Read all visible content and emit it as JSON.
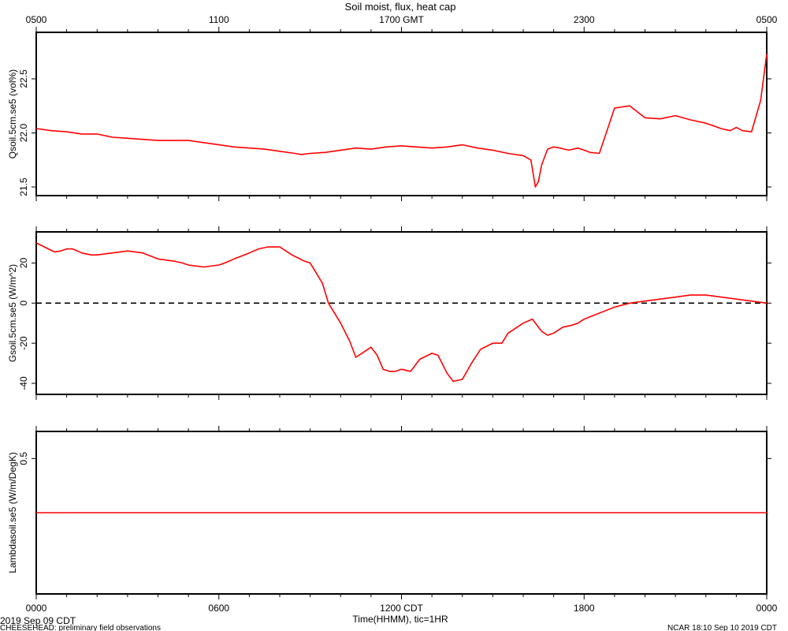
{
  "title": "Soil moist, flux, heat cap",
  "top_axis_labels": [
    "0500",
    "1100",
    "1700 GMT",
    "2300",
    "0500"
  ],
  "bottom_axis_labels": [
    "0000",
    "0600",
    "1200 CDT",
    "1800",
    "0000"
  ],
  "xlabel": "Time(HHMM), tic=1HR",
  "date_label": "2019 Sep 09 CDT",
  "footer_left": "CHEESEHEAD: preliminary field observations",
  "footer_right": "NCAR 18:10 Sep 10 2019 CDT",
  "colors": {
    "series": "#ff0000",
    "axes": "#000000"
  },
  "chart_data": [
    {
      "type": "line",
      "ylabel": "Qsoil.5cm.se5 (vol%)",
      "ylim": [
        21.42,
        22.93
      ],
      "yticks": [
        21.5,
        22.0,
        22.5
      ],
      "ytick_labels": [
        "21.5",
        "22.0",
        "22.5"
      ],
      "xlim": [
        0,
        24
      ],
      "series": [
        {
          "x": [
            0,
            0.5,
            1,
            1.5,
            2,
            2.5,
            3,
            3.5,
            4,
            4.5,
            5,
            5.5,
            6,
            6.5,
            7,
            7.5,
            8,
            8.5,
            8.7,
            9,
            9.5,
            10,
            10.5,
            11,
            11.5,
            12,
            12.5,
            13,
            13.5,
            14,
            14.5,
            15,
            15.5,
            16,
            16.25,
            16.4,
            16.5,
            16.6,
            16.8,
            17,
            17.2,
            17.5,
            17.8,
            18,
            18.2,
            18.5,
            19,
            19.5,
            20,
            20.5,
            21,
            21.5,
            22,
            22.2,
            22.5,
            22.8,
            23,
            23.2,
            23.5,
            23.8,
            24
          ],
          "values": [
            22.04,
            22.02,
            22.01,
            21.99,
            21.99,
            21.96,
            21.95,
            21.94,
            21.93,
            21.93,
            21.93,
            21.91,
            21.89,
            21.87,
            21.86,
            21.85,
            21.83,
            21.81,
            21.8,
            21.81,
            21.82,
            21.84,
            21.86,
            21.85,
            21.87,
            21.88,
            21.87,
            21.86,
            21.87,
            21.89,
            21.86,
            21.84,
            21.81,
            21.79,
            21.75,
            21.5,
            21.55,
            21.7,
            21.85,
            21.87,
            21.86,
            21.84,
            21.86,
            21.84,
            21.82,
            21.81,
            22.23,
            22.25,
            22.14,
            22.13,
            22.16,
            22.12,
            22.09,
            22.07,
            22.04,
            22.02,
            22.05,
            22.02,
            22.01,
            22.3,
            22.73
          ]
        }
      ]
    },
    {
      "type": "line",
      "ylabel": "Gsoil.5cm.se5 (W/m^2)",
      "ylim": [
        -45.5,
        35.5
      ],
      "yticks": [
        -40,
        -20,
        0,
        20
      ],
      "ytick_labels": [
        "-40",
        "-20",
        "0",
        "20"
      ],
      "xlim": [
        0,
        24
      ],
      "reference_line": 0,
      "series": [
        {
          "x": [
            0,
            0.4,
            0.6,
            0.8,
            1,
            1.2,
            1.5,
            1.8,
            2,
            2.5,
            3,
            3.5,
            4,
            4.5,
            4.8,
            5,
            5.5,
            6,
            6.2,
            6.5,
            7,
            7.3,
            7.6,
            8,
            8.4,
            8.8,
            9,
            9.2,
            9.4,
            9.6,
            10,
            10.3,
            10.5,
            10.8,
            11,
            11.2,
            11.4,
            11.6,
            11.8,
            12,
            12.3,
            12.6,
            13,
            13.2,
            13.5,
            13.7,
            14,
            14.3,
            14.6,
            15,
            15.3,
            15.5,
            15.8,
            16,
            16.3,
            16.6,
            16.8,
            17,
            17.3,
            17.6,
            17.8,
            18,
            18.5,
            19,
            19.5,
            20,
            20.5,
            21,
            21.5,
            22,
            23,
            24
          ],
          "values": [
            30,
            27,
            25.5,
            26,
            27,
            27,
            25,
            24,
            24,
            25,
            26,
            25,
            22,
            21,
            20,
            19,
            18,
            19,
            20,
            22,
            25,
            27,
            28,
            28,
            24,
            21,
            20,
            15,
            10,
            0,
            -10,
            -19,
            -27,
            -24,
            -22,
            -26,
            -33,
            -34,
            -34,
            -33,
            -34,
            -28,
            -25,
            -26,
            -35,
            -39,
            -38,
            -30,
            -23,
            -20,
            -20,
            -15,
            -12,
            -10,
            -8,
            -14,
            -16,
            -15,
            -12,
            -11,
            -10,
            -8,
            -5,
            -2,
            0,
            1,
            2,
            3,
            4,
            4,
            2,
            0
          ]
        }
      ]
    },
    {
      "type": "line",
      "ylabel": "Lambdasoil.se5 (W/m/DegK)",
      "ylim": [
        0,
        0.6
      ],
      "yticks": [
        0.5
      ],
      "ytick_labels": [
        "0.5"
      ],
      "xlim": [
        0,
        24
      ],
      "series": [
        {
          "x": [
            0,
            24
          ],
          "values": [
            0.3,
            0.3
          ]
        }
      ]
    }
  ]
}
